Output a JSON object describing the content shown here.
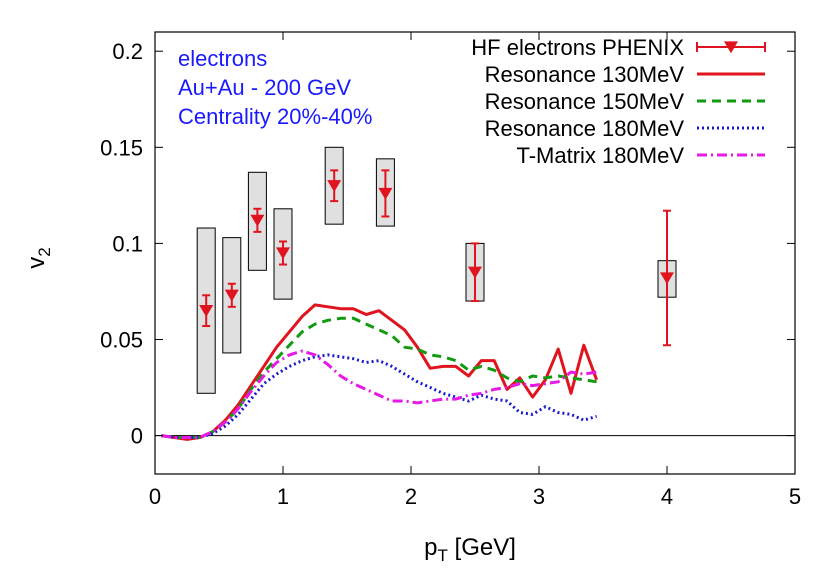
{
  "chart_data": {
    "type": "line",
    "title": "",
    "xlabel": {
      "main": "p",
      "sub": "T",
      "rest": " [GeV]"
    },
    "ylabel": {
      "main": "v",
      "sub": "2"
    },
    "xlim": [
      0,
      5
    ],
    "ylim": [
      -0.02,
      0.21
    ],
    "xticks": [
      0,
      1,
      2,
      3,
      4,
      5
    ],
    "xtick_labels": [
      "0",
      "1",
      "2",
      "3",
      "4",
      "5"
    ],
    "yticks": [
      0,
      0.05,
      0.1,
      0.15,
      0.2
    ],
    "ytick_labels": [
      "0",
      "0.05",
      "0.1",
      "0.15",
      "0.2"
    ],
    "grid": false,
    "zero_line": true,
    "legend_position": "top-right",
    "annotations": [
      "electrons",
      "Au+Au - 200 GeV",
      "Centrality 20%-40%"
    ],
    "annotation_color": "#1a1aff",
    "data_points": {
      "name": "HF electrons PHENIX",
      "color": "#e0141e",
      "marker": "down-triangle",
      "points": [
        {
          "x": 0.4,
          "y": 0.065,
          "err": 0.008,
          "sys_low": 0.022,
          "sys_high": 0.108
        },
        {
          "x": 0.6,
          "y": 0.073,
          "err": 0.006,
          "sys_low": 0.043,
          "sys_high": 0.103
        },
        {
          "x": 0.8,
          "y": 0.112,
          "err": 0.006,
          "sys_low": 0.086,
          "sys_high": 0.137
        },
        {
          "x": 1.0,
          "y": 0.095,
          "err": 0.006,
          "sys_low": 0.071,
          "sys_high": 0.118
        },
        {
          "x": 1.4,
          "y": 0.13,
          "err": 0.008,
          "sys_low": 0.11,
          "sys_high": 0.15
        },
        {
          "x": 1.8,
          "y": 0.126,
          "err": 0.012,
          "sys_low": 0.109,
          "sys_high": 0.144
        },
        {
          "x": 2.5,
          "y": 0.085,
          "err": 0.015,
          "sys_low": 0.07,
          "sys_high": 0.1
        },
        {
          "x": 4.0,
          "y": 0.082,
          "err": 0.035,
          "sys_low": 0.072,
          "sys_high": 0.091
        }
      ]
    },
    "series": [
      {
        "name": "Resonance 130MeV",
        "color": "#e0141e",
        "dash": "",
        "width": 3,
        "x": [
          0.05,
          0.15,
          0.25,
          0.35,
          0.45,
          0.55,
          0.65,
          0.75,
          0.85,
          0.95,
          1.05,
          1.15,
          1.25,
          1.35,
          1.45,
          1.55,
          1.65,
          1.75,
          1.85,
          1.95,
          2.05,
          2.15,
          2.25,
          2.35,
          2.45,
          2.55,
          2.65,
          2.75,
          2.85,
          2.95,
          3.05,
          3.15,
          3.25,
          3.35,
          3.45
        ],
        "y": [
          0.0,
          -0.001,
          -0.002,
          -0.001,
          0.002,
          0.008,
          0.016,
          0.026,
          0.036,
          0.046,
          0.054,
          0.062,
          0.068,
          0.067,
          0.066,
          0.066,
          0.063,
          0.065,
          0.06,
          0.055,
          0.046,
          0.035,
          0.036,
          0.036,
          0.031,
          0.039,
          0.039,
          0.024,
          0.03,
          0.02,
          0.029,
          0.045,
          0.022,
          0.047,
          0.029
        ]
      },
      {
        "name": "Resonance 150MeV",
        "color": "#139a13",
        "dash": "9,6",
        "width": 3,
        "x": [
          0.05,
          0.15,
          0.25,
          0.35,
          0.45,
          0.55,
          0.65,
          0.75,
          0.85,
          0.95,
          1.05,
          1.15,
          1.25,
          1.35,
          1.45,
          1.55,
          1.65,
          1.75,
          1.85,
          1.95,
          2.05,
          2.15,
          2.25,
          2.35,
          2.45,
          2.55,
          2.65,
          2.75,
          2.85,
          2.95,
          3.05,
          3.15,
          3.25,
          3.35,
          3.45
        ],
        "y": [
          0.0,
          -0.001,
          -0.001,
          -0.001,
          0.002,
          0.007,
          0.014,
          0.024,
          0.033,
          0.04,
          0.047,
          0.054,
          0.058,
          0.06,
          0.061,
          0.061,
          0.058,
          0.055,
          0.052,
          0.046,
          0.045,
          0.042,
          0.041,
          0.039,
          0.034,
          0.036,
          0.034,
          0.03,
          0.028,
          0.031,
          0.03,
          0.031,
          0.03,
          0.029,
          0.028
        ]
      },
      {
        "name": "Resonance 180MeV",
        "color": "#1a1acc",
        "dash": "2,3",
        "width": 3,
        "x": [
          0.05,
          0.15,
          0.25,
          0.35,
          0.45,
          0.55,
          0.65,
          0.75,
          0.85,
          0.95,
          1.05,
          1.15,
          1.25,
          1.35,
          1.45,
          1.55,
          1.65,
          1.75,
          1.85,
          1.95,
          2.05,
          2.15,
          2.25,
          2.35,
          2.45,
          2.55,
          2.65,
          2.75,
          2.85,
          2.95,
          3.05,
          3.15,
          3.25,
          3.35,
          3.45
        ],
        "y": [
          0.0,
          -0.001,
          -0.001,
          -0.001,
          0.001,
          0.005,
          0.011,
          0.019,
          0.027,
          0.032,
          0.036,
          0.039,
          0.041,
          0.042,
          0.041,
          0.04,
          0.038,
          0.039,
          0.036,
          0.032,
          0.028,
          0.025,
          0.022,
          0.02,
          0.018,
          0.021,
          0.019,
          0.018,
          0.012,
          0.011,
          0.015,
          0.012,
          0.011,
          0.008,
          0.01
        ]
      },
      {
        "name": "T-Matrix 180MeV",
        "color": "#e619e6",
        "dash": "10,4,2,4",
        "width": 3,
        "x": [
          0.05,
          0.15,
          0.25,
          0.35,
          0.45,
          0.55,
          0.65,
          0.75,
          0.85,
          0.95,
          1.05,
          1.15,
          1.25,
          1.35,
          1.45,
          1.55,
          1.65,
          1.75,
          1.85,
          1.95,
          2.05,
          2.15,
          2.25,
          2.35,
          2.45,
          2.55,
          2.65,
          2.75,
          2.85,
          2.95,
          3.05,
          3.15,
          3.25,
          3.35,
          3.45
        ],
        "y": [
          0.0,
          -0.001,
          -0.001,
          -0.001,
          0.002,
          0.007,
          0.014,
          0.023,
          0.031,
          0.038,
          0.042,
          0.044,
          0.042,
          0.037,
          0.031,
          0.027,
          0.024,
          0.021,
          0.018,
          0.018,
          0.017,
          0.018,
          0.019,
          0.019,
          0.021,
          0.022,
          0.024,
          0.025,
          0.027,
          0.026,
          0.027,
          0.028,
          0.033,
          0.032,
          0.033
        ]
      }
    ]
  }
}
